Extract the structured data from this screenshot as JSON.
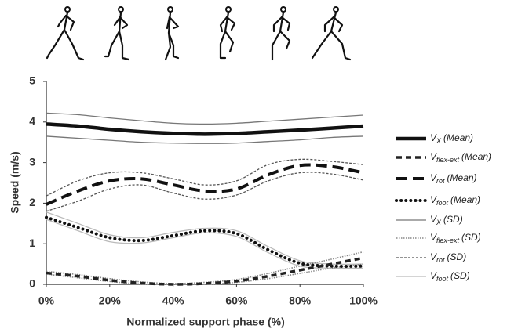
{
  "chart_data": {
    "type": "line",
    "x_label": "Normalized support phase (%)",
    "y_label": "Speed (m/s)",
    "x": [
      0,
      10,
      20,
      30,
      40,
      50,
      60,
      70,
      80,
      90,
      100
    ],
    "xlim": [
      0,
      100
    ],
    "xticks": [
      {
        "value": 0,
        "label": "0%"
      },
      {
        "value": 20,
        "label": "20%"
      },
      {
        "value": 40,
        "label": "40%"
      },
      {
        "value": 60,
        "label": "60%"
      },
      {
        "value": 80,
        "label": "80%"
      },
      {
        "value": 100,
        "label": "100%"
      }
    ],
    "ylim": [
      0,
      5
    ],
    "yticks": [
      0,
      1,
      2,
      3,
      4,
      5
    ],
    "grid": false,
    "legend": "right",
    "series": [
      {
        "name": "V",
        "sub": "X",
        "note": "(Mean)",
        "color": "#111",
        "width": 4.5,
        "style": "solid",
        "values": [
          3.95,
          3.9,
          3.82,
          3.76,
          3.72,
          3.7,
          3.72,
          3.76,
          3.8,
          3.85,
          3.9
        ]
      },
      {
        "name": "V",
        "sub": "flex-ext",
        "note": "(Mean)",
        "color": "#222",
        "width": 3.5,
        "style": "dash",
        "values": [
          0.28,
          0.2,
          0.1,
          0.03,
          0.0,
          0.02,
          0.08,
          0.2,
          0.35,
          0.5,
          0.65
        ]
      },
      {
        "name": "V",
        "sub": "rot",
        "note": "(Mean)",
        "color": "#111",
        "width": 4,
        "style": "longdash",
        "values": [
          1.97,
          2.3,
          2.55,
          2.6,
          2.45,
          2.3,
          2.35,
          2.7,
          2.93,
          2.9,
          2.75
        ]
      },
      {
        "name": "V",
        "sub": "foot",
        "note": "(Mean)",
        "color": "#111",
        "width": 4,
        "style": "dot",
        "values": [
          1.65,
          1.4,
          1.15,
          1.08,
          1.2,
          1.32,
          1.25,
          0.85,
          0.52,
          0.45,
          0.45
        ]
      },
      {
        "name": "V",
        "sub": "X",
        "note": "(SD)",
        "color": "#777",
        "width": 1.3,
        "style": "solid",
        "upper": [
          4.22,
          4.18,
          4.1,
          4.03,
          3.97,
          3.95,
          3.97,
          4.02,
          4.07,
          4.12,
          4.17
        ],
        "lower": [
          3.65,
          3.6,
          3.55,
          3.5,
          3.48,
          3.47,
          3.48,
          3.52,
          3.56,
          3.62,
          3.65
        ]
      },
      {
        "name": "V",
        "sub": "flex-ext",
        "note": "(SD)",
        "color": "#888",
        "width": 1.6,
        "style": "finedot",
        "upper": [
          0.32,
          0.24,
          0.14,
          0.06,
          0.02,
          0.05,
          0.12,
          0.27,
          0.45,
          0.62,
          0.8
        ],
        "lower": [
          0.25,
          0.16,
          0.07,
          0.01,
          0.0,
          0.0,
          0.05,
          0.14,
          0.27,
          0.4,
          0.5
        ]
      },
      {
        "name": "V",
        "sub": "rot",
        "note": "(SD)",
        "color": "#555",
        "width": 1.3,
        "style": "shortdash",
        "upper": [
          2.18,
          2.55,
          2.75,
          2.75,
          2.6,
          2.45,
          2.55,
          2.95,
          3.08,
          3.03,
          2.95
        ],
        "lower": [
          1.8,
          2.05,
          2.35,
          2.45,
          2.25,
          2.1,
          2.2,
          2.55,
          2.75,
          2.72,
          2.57
        ]
      },
      {
        "name": "V",
        "sub": "foot",
        "note": "(SD)",
        "color": "#bbb",
        "width": 1.3,
        "style": "solid",
        "upper": [
          1.78,
          1.5,
          1.22,
          1.15,
          1.28,
          1.38,
          1.32,
          0.93,
          0.58,
          0.5,
          0.5
        ],
        "lower": [
          1.6,
          1.32,
          1.05,
          1.02,
          1.15,
          1.27,
          1.18,
          0.78,
          0.45,
          0.4,
          0.4
        ]
      }
    ]
  }
}
